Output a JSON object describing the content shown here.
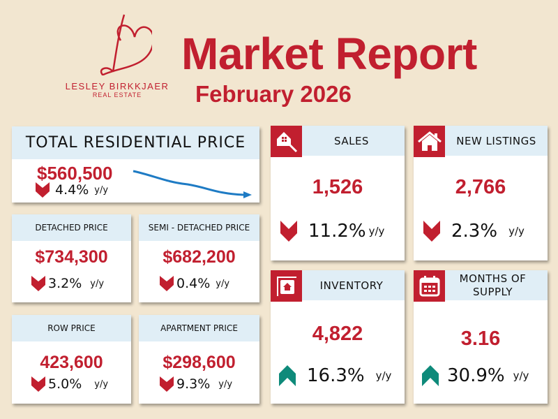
{
  "logo": {
    "name": "LESLEY BIRKKJAER",
    "sub": "REAL ESTATE"
  },
  "title": "Market Report",
  "subtitle": "February 2026",
  "colors": {
    "background": "#f2e6d0",
    "accent": "#c11f2f",
    "header": "#e0eef6",
    "up": "#0e8a7a",
    "trend_line": "#1e7bc4"
  },
  "total": {
    "label": "TOTAL RESIDENTIAL PRICE",
    "value": "$560,500",
    "change": "4.4%",
    "unit": "y/y",
    "direction": "down"
  },
  "detached": {
    "label": "DETACHED PRICE",
    "value": "$734,300",
    "change": "3.2%",
    "unit": "y/y",
    "direction": "down"
  },
  "semi": {
    "label": "SEMI - DETACHED PRICE",
    "value": "$682,200",
    "change": "0.4%",
    "unit": "y/y",
    "direction": "down"
  },
  "row": {
    "label": "ROW PRICE",
    "value": "423,600",
    "change": "5.0%",
    "unit": "y/y",
    "direction": "down"
  },
  "apartment": {
    "label": "APARTMENT PRICE",
    "value": "$298,600",
    "change": "9.3%",
    "unit": "y/y",
    "direction": "down"
  },
  "sales": {
    "label": "SALES",
    "value": "1,526",
    "change": "11.2%",
    "unit": "y/y",
    "direction": "down",
    "icon": "house-key-icon"
  },
  "listings": {
    "label": "NEW LISTINGS",
    "value": "2,766",
    "change": "2.3%",
    "unit": "y/y",
    "direction": "down",
    "icon": "house-icon"
  },
  "inventory": {
    "label": "INVENTORY",
    "value": "4,822",
    "change": "16.3%",
    "unit": "y/y",
    "direction": "up",
    "icon": "house-sign-icon"
  },
  "supply": {
    "label": "MONTHS OF SUPPLY",
    "value": "3.16",
    "change": "30.9%",
    "unit": "y/y",
    "direction": "up",
    "icon": "calendar-icon"
  }
}
